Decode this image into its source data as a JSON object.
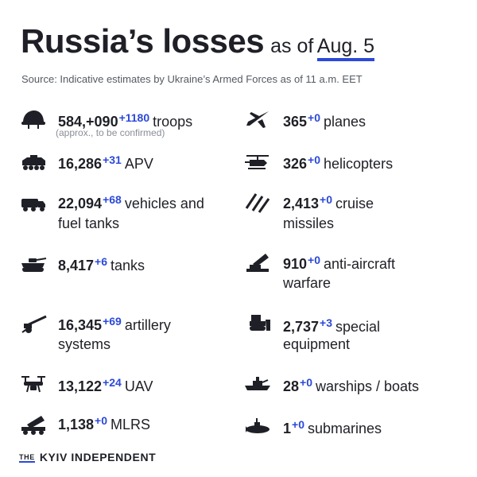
{
  "header": {
    "title": "Russia’s losses",
    "as_of": "as of",
    "date": "Aug. 5",
    "source": "Source: Indicative estimates by Ukraine’s Armed Forces as of 11 a.m. EET"
  },
  "left_items": [
    {
      "icon": "helmet-icon",
      "value": "584,+090",
      "delta": "+1180",
      "label": "troops",
      "note": "(approx., to be confirmed)"
    },
    {
      "icon": "apv-icon",
      "value": "16,286",
      "delta": "+31",
      "label": "APV"
    },
    {
      "icon": "truck-icon",
      "value": "22,094",
      "delta": "+68",
      "label": "vehicles and",
      "label2": "fuel tanks"
    },
    {
      "icon": "tank-icon",
      "value": "8,417",
      "delta": "+6",
      "label": "tanks"
    },
    {
      "icon": "artillery-icon",
      "value": "16,345",
      "delta": "+69",
      "label": "artillery",
      "label2": "systems"
    },
    {
      "icon": "drone-icon",
      "value": "13,122",
      "delta": "+24",
      "label": "UAV"
    },
    {
      "icon": "mlrs-icon",
      "value": "1,138",
      "delta": "+0",
      "label": "MLRS"
    }
  ],
  "right_items": [
    {
      "icon": "plane-icon",
      "value": "365",
      "delta": "+0",
      "label": "planes"
    },
    {
      "icon": "helicopter-icon",
      "value": "326",
      "delta": "+0",
      "label": "helicopters"
    },
    {
      "icon": "missile-icon",
      "value": "2,413",
      "delta": "+0",
      "label": "cruise",
      "label2": "missiles"
    },
    {
      "icon": "anti-aircraft-icon",
      "value": "910",
      "delta": "+0",
      "label": "anti-aircraft",
      "label2": "warfare"
    },
    {
      "icon": "bulldozer-icon",
      "value": "2,737",
      "delta": "+3",
      "label": "special",
      "label2": "equipment"
    },
    {
      "icon": "warship-icon",
      "value": "28",
      "delta": "+0",
      "label": "warships / boats"
    },
    {
      "icon": "submarine-icon",
      "value": "1",
      "delta": "+0",
      "label": "submarines"
    }
  ],
  "footer": {
    "the": "THE",
    "brand": "KYIV INDEPENDENT"
  },
  "colors": {
    "accent": "#2b49d8",
    "text": "#1f2027",
    "muted": "#8a8e96"
  }
}
